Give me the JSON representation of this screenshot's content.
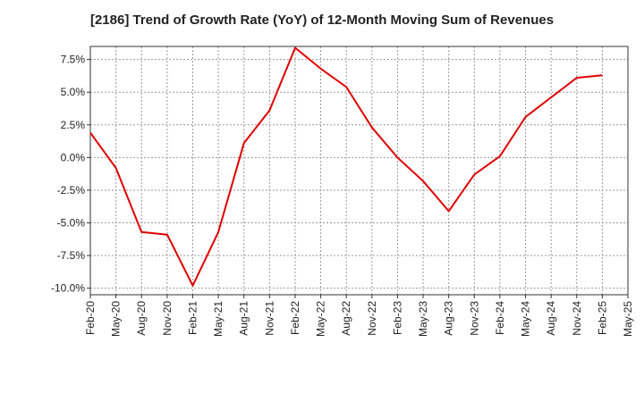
{
  "chart_data": {
    "type": "line",
    "title": "[2186]  Trend of Growth Rate (YoY) of 12-Month Moving Sum of Revenues",
    "xlabel": "",
    "ylabel": "",
    "ylim": [
      -10.5,
      8.5
    ],
    "y_ticks": [
      {
        "value": 7.5,
        "label": "7.5%"
      },
      {
        "value": 5.0,
        "label": "5.0%"
      },
      {
        "value": 2.5,
        "label": "2.5%"
      },
      {
        "value": 0.0,
        "label": "0.0%"
      },
      {
        "value": -2.5,
        "label": "-2.5%"
      },
      {
        "value": -5.0,
        "label": "-5.0%"
      },
      {
        "value": -7.5,
        "label": "-7.5%"
      },
      {
        "value": -10.0,
        "label": "-10.0%"
      }
    ],
    "x_ticks": [
      "Feb-20",
      "May-20",
      "Aug-20",
      "Nov-20",
      "Feb-21",
      "May-21",
      "Aug-21",
      "Nov-21",
      "Feb-22",
      "May-22",
      "Aug-22",
      "Nov-22",
      "Feb-23",
      "May-23",
      "Aug-23",
      "Nov-23",
      "Feb-24",
      "May-24",
      "Aug-24",
      "Nov-24",
      "Feb-25",
      "May-25"
    ],
    "grid": true,
    "series": [
      {
        "color": "#e00000",
        "points": [
          {
            "x": "Feb-20",
            "y": 1.9
          },
          {
            "x": "May-20",
            "y": -0.8
          },
          {
            "x": "Aug-20",
            "y": -5.7
          },
          {
            "x": "Nov-20",
            "y": -5.9
          },
          {
            "x": "Feb-21",
            "y": -9.8
          },
          {
            "x": "May-21",
            "y": -5.7
          },
          {
            "x": "Aug-21",
            "y": 1.1
          },
          {
            "x": "Nov-21",
            "y": 3.6
          },
          {
            "x": "Feb-22",
            "y": 8.4
          },
          {
            "x": "May-22",
            "y": 6.8
          },
          {
            "x": "Aug-22",
            "y": 5.4
          },
          {
            "x": "Nov-22",
            "y": 2.3
          },
          {
            "x": "Feb-23",
            "y": 0.0
          },
          {
            "x": "May-23",
            "y": -1.8
          },
          {
            "x": "Aug-23",
            "y": -4.1
          },
          {
            "x": "Nov-23",
            "y": -1.3
          },
          {
            "x": "Feb-24",
            "y": 0.1
          },
          {
            "x": "May-24",
            "y": 3.1
          },
          {
            "x": "Aug-24",
            "y": 4.6
          },
          {
            "x": "Nov-24",
            "y": 6.1
          },
          {
            "x": "Feb-25",
            "y": 6.3
          }
        ]
      }
    ]
  }
}
